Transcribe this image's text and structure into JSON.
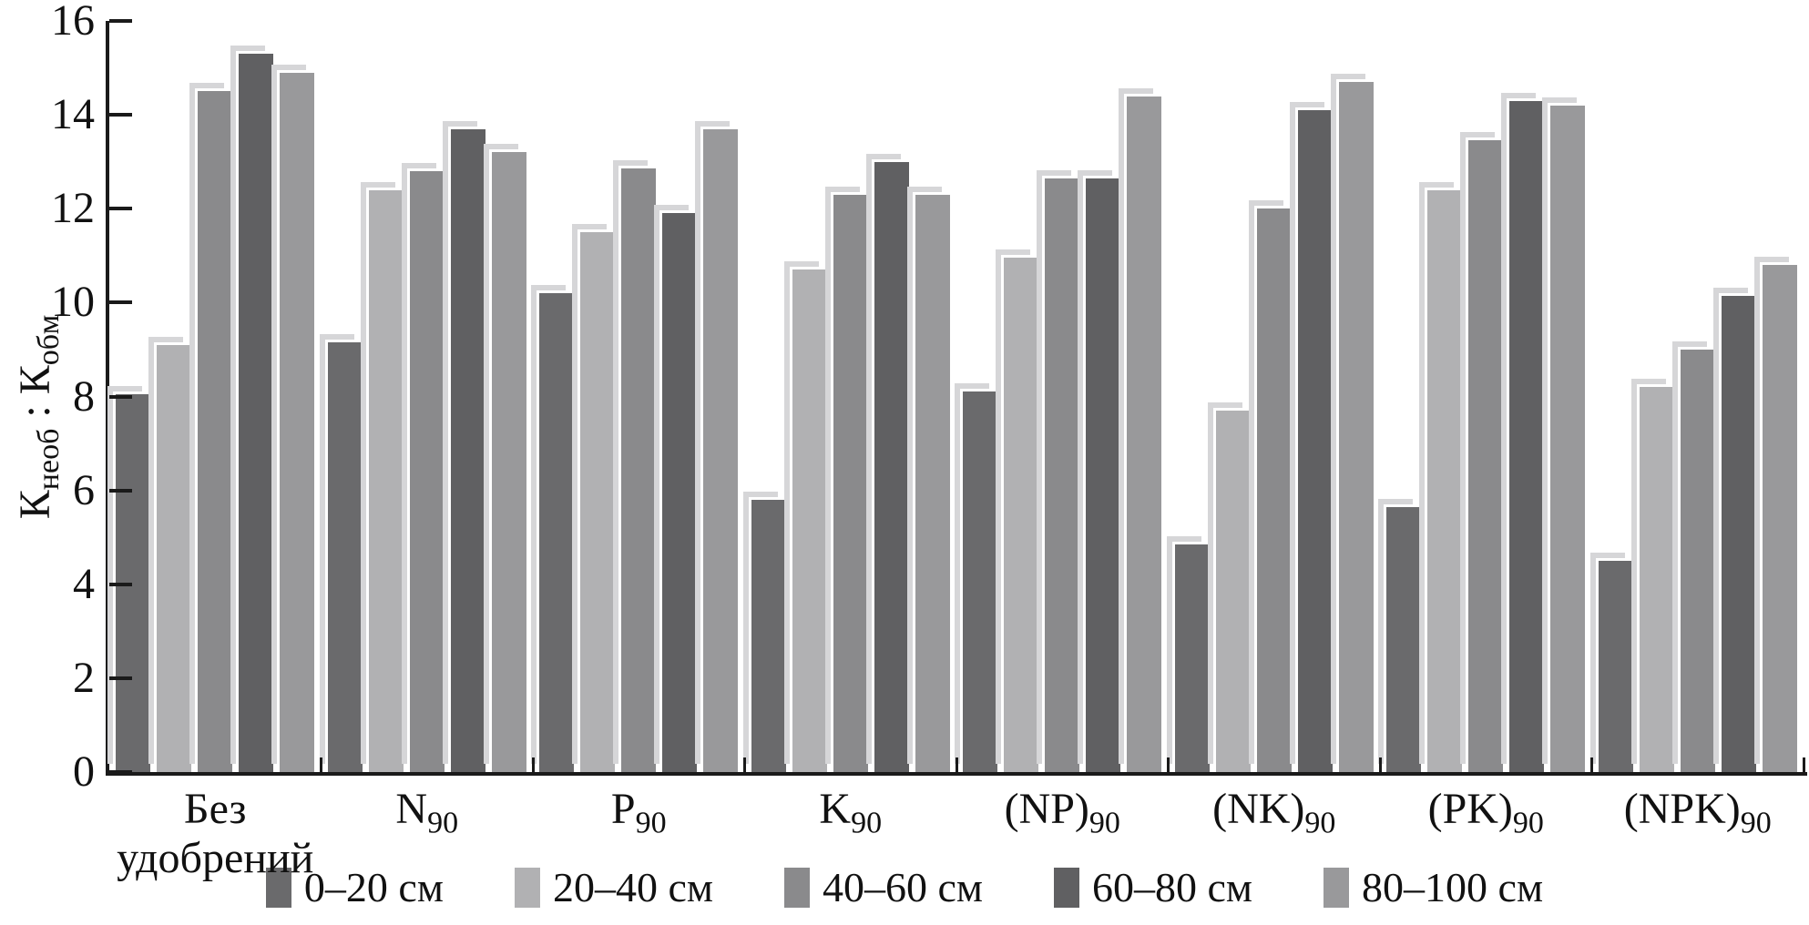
{
  "chart_data": {
    "type": "bar",
    "title": "",
    "ylabel_segments": [
      {
        "text": "К",
        "sub": false
      },
      {
        "text": "необ",
        "sub": true
      },
      {
        "text": " : ",
        "sub": false
      },
      {
        "text": "К",
        "sub": false
      },
      {
        "text": "обм",
        "sub": true
      }
    ],
    "ylim": [
      0,
      16
    ],
    "yticks": [
      0,
      2,
      4,
      6,
      8,
      10,
      12,
      14,
      16
    ],
    "grid": false,
    "legend_position": "bottom",
    "categories": [
      {
        "base": "Без удобрений",
        "sub": "",
        "two_line": true,
        "line1": "Без",
        "line2": "удобрений"
      },
      {
        "base": "N",
        "sub": "90"
      },
      {
        "base": "P",
        "sub": "90"
      },
      {
        "base": "K",
        "sub": "90"
      },
      {
        "base": "(NP)",
        "sub": "90"
      },
      {
        "base": "(NK)",
        "sub": "90"
      },
      {
        "base": "(PK)",
        "sub": "90"
      },
      {
        "base": "(NPK)",
        "sub": "90"
      }
    ],
    "series": [
      {
        "name": "0–20 см",
        "color": "#6a6a6c",
        "values": [
          8.05,
          9.15,
          10.2,
          5.8,
          8.1,
          4.85,
          5.65,
          4.5
        ]
      },
      {
        "name": "20–40 см",
        "color": "#b1b1b3",
        "values": [
          9.1,
          12.4,
          11.5,
          10.7,
          10.95,
          7.7,
          12.4,
          8.2
        ]
      },
      {
        "name": "40–60 см",
        "color": "#8a8a8c",
        "values": [
          14.5,
          12.8,
          12.85,
          12.3,
          12.65,
          12.0,
          13.45,
          9.0
        ]
      },
      {
        "name": "60–80 см",
        "color": "#606062",
        "values": [
          15.3,
          13.7,
          11.9,
          13.0,
          12.65,
          14.1,
          14.3,
          10.15
        ]
      },
      {
        "name": "80–100 см",
        "color": "#99999b",
        "values": [
          14.9,
          13.2,
          13.7,
          12.3,
          14.4,
          14.7,
          14.2,
          10.8
        ]
      }
    ],
    "shadow_color": "#d6d6d8",
    "axis_color": "#1a1a1a"
  }
}
